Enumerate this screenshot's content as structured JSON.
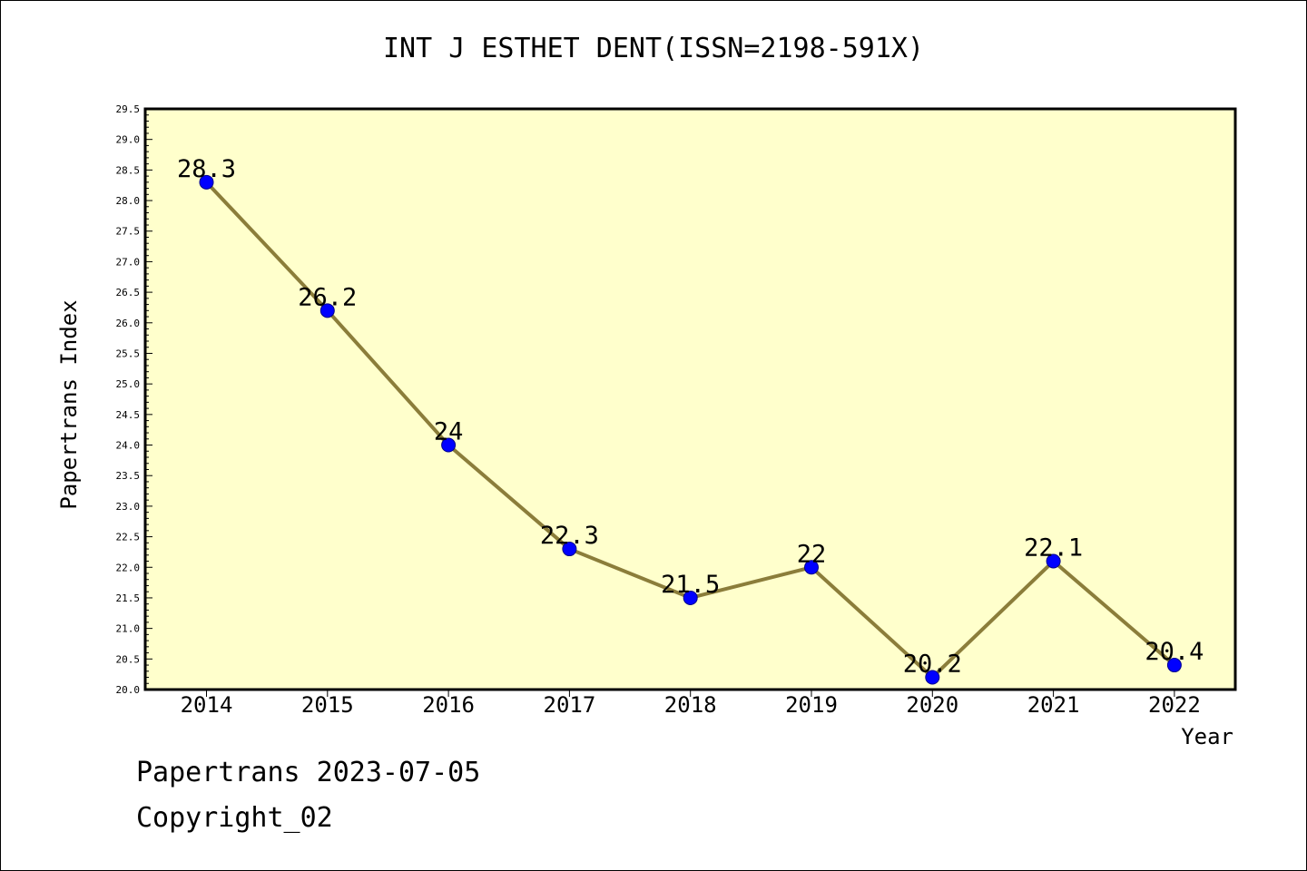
{
  "chart_data": {
    "type": "line",
    "title": "INT J ESTHET DENT(ISSN=2198-591X)",
    "xlabel": "Year",
    "ylabel": "Papertrans Index",
    "categories": [
      "2014",
      "2015",
      "2016",
      "2017",
      "2018",
      "2019",
      "2020",
      "2021",
      "2022"
    ],
    "series": [
      {
        "values": [
          28.3,
          26.2,
          24,
          22.3,
          21.5,
          22,
          20.2,
          22.1,
          20.4
        ],
        "labels": [
          "28.3",
          "26.2",
          "24",
          "22.3",
          "21.5",
          "22",
          "20.2",
          "22.1",
          "20.4"
        ]
      }
    ],
    "ylim": [
      20.0,
      29.5
    ],
    "ytick_step": 0.5,
    "ytick_labels": [
      "20.0",
      "20.5",
      "21.0",
      "21.5",
      "22.0",
      "22.5",
      "23.0",
      "23.5",
      "24.0",
      "24.5",
      "25.0",
      "25.5",
      "26.0",
      "26.5",
      "27.0",
      "27.5",
      "28.0",
      "28.5",
      "29.0",
      "29.5"
    ],
    "grid": false,
    "colors": {
      "plot_background": "#ffffcc",
      "line": "#8b7d3a",
      "marker": "#0000ff"
    }
  },
  "footer": {
    "line1": "Papertrans 2023-07-05",
    "line2": "Copyright_02"
  }
}
